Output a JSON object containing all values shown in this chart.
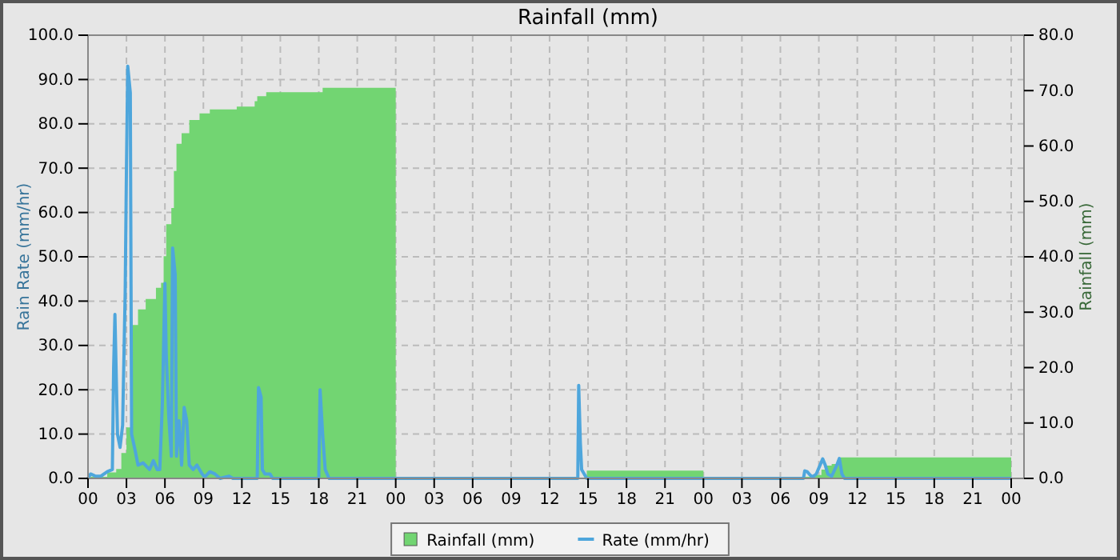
{
  "chart_data": {
    "type": "line",
    "title": "Rainfall (mm)",
    "ylabel": "Rain Rate (mm/hr)",
    "y2label": "Rainfall (mm)",
    "xlim": [
      0,
      73
    ],
    "xticks": [
      {
        "value": 0,
        "label": "00"
      },
      {
        "value": 3,
        "label": "03"
      },
      {
        "value": 6,
        "label": "06"
      },
      {
        "value": 9,
        "label": "09"
      },
      {
        "value": 12,
        "label": "12"
      },
      {
        "value": 15,
        "label": "15"
      },
      {
        "value": 18,
        "label": "18"
      },
      {
        "value": 21,
        "label": "21"
      },
      {
        "value": 24,
        "label": "00"
      },
      {
        "value": 27,
        "label": "03"
      },
      {
        "value": 30,
        "label": "06"
      },
      {
        "value": 33,
        "label": "09"
      },
      {
        "value": 36,
        "label": "12"
      },
      {
        "value": 39,
        "label": "15"
      },
      {
        "value": 42,
        "label": "18"
      },
      {
        "value": 45,
        "label": "21"
      },
      {
        "value": 48,
        "label": "00"
      },
      {
        "value": 51,
        "label": "03"
      },
      {
        "value": 54,
        "label": "06"
      },
      {
        "value": 57,
        "label": "09"
      },
      {
        "value": 60,
        "label": "12"
      },
      {
        "value": 63,
        "label": "15"
      },
      {
        "value": 66,
        "label": "18"
      },
      {
        "value": 69,
        "label": "21"
      },
      {
        "value": 72,
        "label": "00"
      }
    ],
    "ylim": [
      0,
      100
    ],
    "yticks": [
      {
        "value": 0,
        "label": "0.0"
      },
      {
        "value": 10,
        "label": "10.0"
      },
      {
        "value": 20,
        "label": "20.0"
      },
      {
        "value": 30,
        "label": "30.0"
      },
      {
        "value": 40,
        "label": "40.0"
      },
      {
        "value": 50,
        "label": "50.0"
      },
      {
        "value": 60,
        "label": "60.0"
      },
      {
        "value": 70,
        "label": "70.0"
      },
      {
        "value": 80,
        "label": "80.0"
      },
      {
        "value": 90,
        "label": "90.0"
      },
      {
        "value": 100,
        "label": "100.0"
      }
    ],
    "y2lim": [
      0,
      80
    ],
    "y2ticks": [
      {
        "value": 0,
        "label": "0.0"
      },
      {
        "value": 10,
        "label": "10.0"
      },
      {
        "value": 20,
        "label": "20.0"
      },
      {
        "value": 30,
        "label": "30.0"
      },
      {
        "value": 40,
        "label": "40.0"
      },
      {
        "value": 50,
        "label": "50.0"
      },
      {
        "value": 60,
        "label": "60.0"
      },
      {
        "value": 70,
        "label": "70.0"
      },
      {
        "value": 80,
        "label": "80.0"
      }
    ],
    "grid": true,
    "legend": "bottom",
    "series": [
      {
        "name": "Rainfall (mm)",
        "type": "area",
        "axis": "y2",
        "color": "#72d572",
        "x": [
          0.2,
          1.5,
          2.2,
          2.6,
          3.0,
          3.4,
          3.9,
          4.5,
          5.3,
          5.7,
          5.9,
          6.1,
          6.5,
          6.7,
          6.9,
          7.3,
          7.9,
          8.7,
          9.5,
          11.6,
          13.0,
          13.2,
          13.9,
          18.3,
          24,
          30,
          38.9,
          48,
          50,
          55.9,
          56.5,
          57.2,
          57.5,
          58.0,
          58.7,
          72
        ],
        "values": [
          0.3,
          1.1,
          1.7,
          4.6,
          9.2,
          27.7,
          30.5,
          32.4,
          34.4,
          35.3,
          40.1,
          45.9,
          48.8,
          55.5,
          60.4,
          62.3,
          64.7,
          65.9,
          66.6,
          67.1,
          68.1,
          69.0,
          69.7,
          70.5,
          70.5,
          null,
          1.4,
          1.4,
          null,
          0.3,
          0.6,
          1.6,
          2.3,
          2.6,
          3.8,
          3.8
        ]
      },
      {
        "name": "Rate (mm/hr)",
        "axis": "y",
        "color": "#4ea6dc",
        "x": [
          0,
          0.2,
          0.6,
          1.0,
          1.5,
          1.9,
          2.0,
          2.1,
          2.3,
          2.5,
          2.7,
          2.9,
          3.0,
          3.1,
          3.3,
          3.4,
          3.7,
          3.9,
          4.3,
          4.8,
          5.1,
          5.4,
          5.6,
          5.8,
          6.0,
          6.1,
          6.3,
          6.5,
          6.6,
          6.8,
          6.9,
          7.1,
          7.3,
          7.5,
          7.7,
          7.9,
          8.2,
          8.5,
          8.9,
          9.1,
          9.5,
          9.9,
          10.3,
          11.0,
          11.3,
          13.2,
          13.3,
          13.5,
          13.6,
          13.8,
          14.2,
          14.4,
          18.0,
          18.1,
          18.3,
          18.5,
          18.8,
          38.2,
          38.27,
          38.4,
          38.5,
          38.7,
          38.9,
          55.8,
          55.9,
          56.1,
          56.3,
          56.5,
          56.8,
          57.3,
          57.5,
          57.7,
          58.0,
          58.4,
          58.6,
          58.8,
          59.0,
          72
        ],
        "values": [
          0,
          1.0,
          0.5,
          0.5,
          1.5,
          2,
          25,
          37,
          10,
          7,
          12,
          42,
          70,
          93,
          87,
          10,
          6,
          3,
          3.5,
          2,
          4,
          2,
          2,
          17,
          44,
          28,
          14,
          5,
          52,
          46,
          5,
          13,
          3,
          16,
          13,
          3,
          2,
          3,
          1,
          0.3,
          1.5,
          1,
          0,
          0.5,
          0,
          0,
          20.5,
          18.3,
          2,
          1,
          1,
          0,
          0,
          20,
          10,
          2,
          0,
          0,
          21,
          8,
          2,
          1,
          0,
          0,
          1.7,
          1.5,
          0.8,
          0.3,
          1,
          4.4,
          3,
          1,
          0.5,
          3,
          4.5,
          1,
          0,
          0
        ]
      }
    ]
  }
}
